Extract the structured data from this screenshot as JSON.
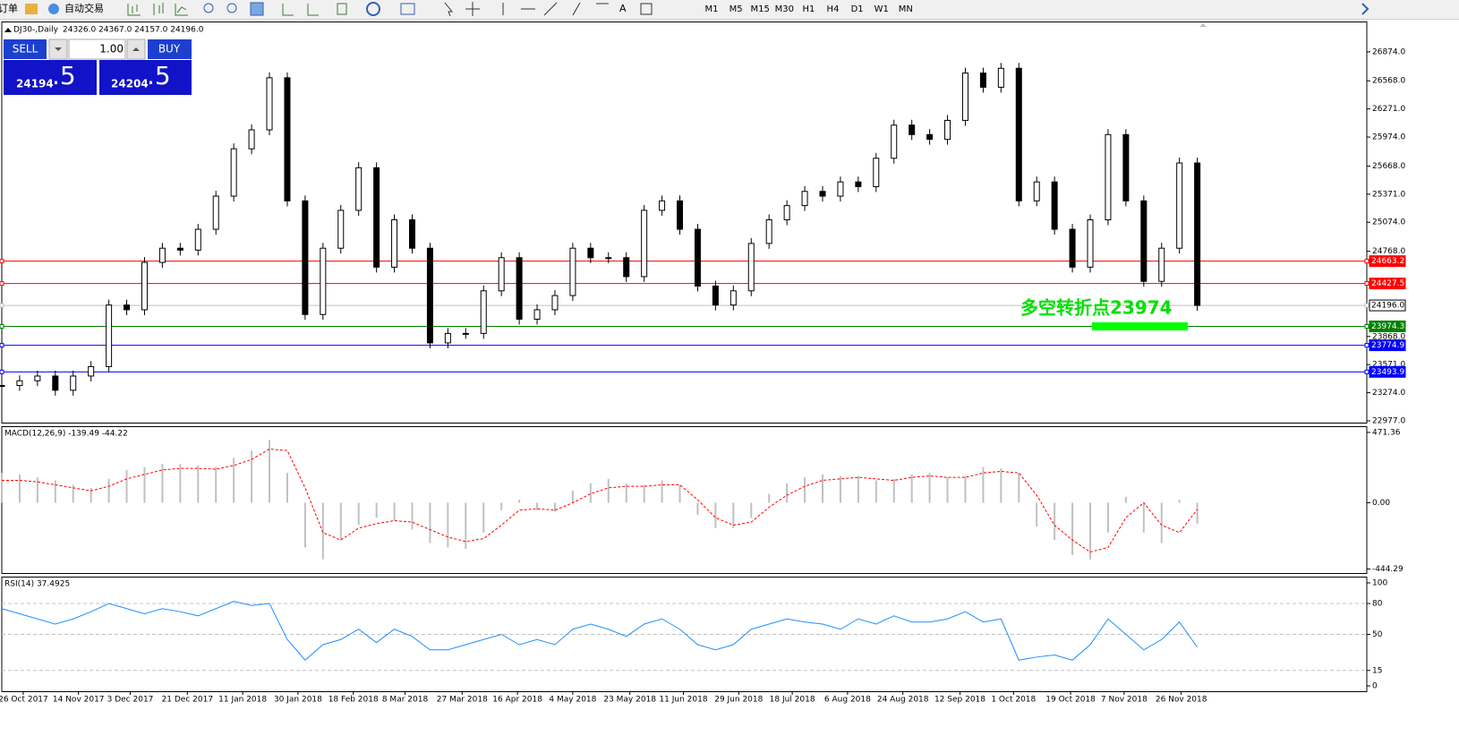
{
  "toolbar": {
    "items": [
      "订单",
      "自动交易"
    ],
    "periods": [
      "M1",
      "M5",
      "M15",
      "M30",
      "H1",
      "H4",
      "D1",
      "W1",
      "MN"
    ]
  },
  "trade_panel": {
    "sell": "SELL",
    "buy": "BUY",
    "lots": "1.00",
    "bid_main": "24194",
    "bid_frac": ".5",
    "ask_main": "24204",
    "ask_frac": ".5"
  },
  "chart_data": [
    {
      "type": "candlestick",
      "title": "DJ30-,Daily",
      "subtitle": "24326.0 24367.0 24157.0 24196.0",
      "annotation": "多空转折点23974",
      "values": [
        23350,
        23400,
        23450,
        23300,
        23450,
        23550,
        24200,
        24150,
        24650,
        24800,
        24780,
        25000,
        25350,
        25850,
        26050,
        26600,
        25300,
        24100,
        24800,
        25200,
        25650,
        24600,
        25100,
        24800,
        23800,
        23900,
        23900,
        24350,
        24700,
        24050,
        24150,
        24300,
        24800,
        24700,
        24700,
        24500,
        25200,
        25300,
        25000,
        24400,
        24200,
        24350,
        24850,
        25100,
        25250,
        25400,
        25350,
        25500,
        25450,
        25750,
        26100,
        26000,
        25950,
        26150,
        26650,
        26500,
        26700,
        25300,
        25500,
        25000,
        24600,
        25100,
        26000,
        25300,
        24450,
        24800,
        25700,
        24196
      ],
      "xlim": [
        0,
        76.5
      ],
      "ylim": [
        22958,
        27185
      ],
      "yticks": [
        {
          "value": 26874,
          "label": "26874.0"
        },
        {
          "value": 26568,
          "label": "26568.0"
        },
        {
          "value": 26271,
          "label": "26271.0"
        },
        {
          "value": 25974,
          "label": "25974.0"
        },
        {
          "value": 25668,
          "label": "25668.0"
        },
        {
          "value": 25371,
          "label": "25371.0"
        },
        {
          "value": 25074,
          "label": "25074.0"
        },
        {
          "value": 24768,
          "label": "24768.0"
        },
        {
          "value": 23868,
          "label": "23868.0"
        },
        {
          "value": 23571,
          "label": "23571.0"
        },
        {
          "value": 23274,
          "label": "23274.0"
        },
        {
          "value": 22977,
          "label": "22977.0"
        }
      ],
      "levels": [
        {
          "value": 24663.2,
          "label": "24663.2",
          "color": "#ff0000"
        },
        {
          "value": 24427.5,
          "label": "24427.5",
          "color": "#ff0000"
        },
        {
          "value": 24196,
          "label": "24196.0",
          "color": "#c0c0c0"
        },
        {
          "value": 23974.3,
          "label": "23974.3",
          "color": "#008000"
        },
        {
          "value": 23774.9,
          "label": "23774.9",
          "color": "#0000ff"
        },
        {
          "value": 23493.9,
          "label": "23493.9",
          "color": "#0000ff"
        }
      ]
    },
    {
      "type": "macd",
      "title": "MACD(12,26,9) -139.49 -44.22",
      "xlim": [
        0,
        76.5
      ],
      "ylim": [
        -471,
        507
      ],
      "yticks": [
        {
          "value": 471.36,
          "label": "471.36"
        },
        {
          "value": 0,
          "label": "0.00"
        },
        {
          "value": -444.29,
          "label": "-444.29"
        }
      ],
      "series": [
        {
          "name": "MACD",
          "color": "#c0c0c0",
          "values": [
            200,
            190,
            170,
            150,
            120,
            100,
            160,
            220,
            240,
            260,
            260,
            250,
            240,
            300,
            350,
            420,
            200,
            -300,
            -380,
            -250,
            -150,
            -100,
            -120,
            -180,
            -270,
            -300,
            -310,
            -200,
            -50,
            20,
            -50,
            -60,
            80,
            130,
            160,
            130,
            120,
            150,
            120,
            -80,
            -170,
            -170,
            -100,
            60,
            130,
            170,
            190,
            180,
            180,
            150,
            160,
            190,
            200,
            170,
            180,
            240,
            230,
            200,
            -160,
            -250,
            -350,
            -380,
            -200,
            40,
            -200,
            -270,
            20,
            -139.49
          ]
        },
        {
          "name": "Signal",
          "color": "#ff0000",
          "values": [
            150,
            150,
            140,
            120,
            100,
            80,
            110,
            160,
            190,
            220,
            230,
            230,
            225,
            250,
            290,
            360,
            350,
            100,
            -200,
            -250,
            -170,
            -140,
            -120,
            -130,
            -180,
            -230,
            -260,
            -240,
            -150,
            -50,
            -40,
            -50,
            0,
            60,
            100,
            110,
            110,
            120,
            120,
            20,
            -100,
            -150,
            -130,
            -30,
            50,
            110,
            150,
            160,
            170,
            160,
            150,
            170,
            180,
            170,
            170,
            200,
            210,
            200,
            50,
            -150,
            -250,
            -330,
            -300,
            -100,
            0,
            -150,
            -200,
            -44.22
          ]
        }
      ]
    },
    {
      "type": "rsi",
      "title": "RSI(14) 37.4925",
      "xlim": [
        0,
        76.5
      ],
      "ylim": [
        -5.2,
        105.2
      ],
      "yticks": [
        100,
        80,
        50,
        15,
        0
      ],
      "color": "#1e90ff",
      "values": [
        75,
        70,
        65,
        60,
        65,
        72,
        80,
        75,
        70,
        75,
        72,
        68,
        75,
        82,
        78,
        80,
        45,
        25,
        40,
        45,
        55,
        42,
        55,
        48,
        35,
        35,
        40,
        45,
        50,
        40,
        45,
        40,
        55,
        60,
        55,
        48,
        60,
        65,
        55,
        40,
        35,
        40,
        55,
        60,
        65,
        62,
        60,
        55,
        65,
        60,
        68,
        62,
        62,
        65,
        72,
        62,
        65,
        25,
        28,
        30,
        25,
        40,
        65,
        50,
        35,
        45,
        62,
        37.4925
      ],
      "xticks": [
        {
          "value": 1.2,
          "label": "26 Oct 2017"
        },
        {
          "value": 4.3,
          "label": "14 Nov 2017"
        },
        {
          "value": 7.2,
          "label": "3 Dec 2017"
        },
        {
          "value": 10.4,
          "label": "21 Dec 2017"
        },
        {
          "value": 13.5,
          "label": "11 Jan 2018"
        },
        {
          "value": 16.6,
          "label": "30 Jan 2018"
        },
        {
          "value": 19.7,
          "label": "18 Feb 2018"
        },
        {
          "value": 22.6,
          "label": "8 Mar 2018"
        },
        {
          "value": 25.8,
          "label": "27 Mar 2018"
        },
        {
          "value": 28.9,
          "label": "16 Apr 2018"
        },
        {
          "value": 32,
          "label": "4 May 2018"
        },
        {
          "value": 35.2,
          "label": "23 May 2018"
        },
        {
          "value": 38.2,
          "label": "11 Jun 2018"
        },
        {
          "value": 41.3,
          "label": "29 Jun 2018"
        },
        {
          "value": 44.3,
          "label": "18 Jul 2018"
        },
        {
          "value": 47.4,
          "label": "6 Aug 2018"
        },
        {
          "value": 50.5,
          "label": "24 Aug 2018"
        },
        {
          "value": 53.7,
          "label": "12 Sep 2018"
        },
        {
          "value": 56.7,
          "label": "1 Oct 2018"
        },
        {
          "value": 59.9,
          "label": "19 Oct 2018"
        },
        {
          "value": 62.9,
          "label": "7 Nov 2018"
        },
        {
          "value": 66.1,
          "label": "26 Nov 2018"
        }
      ]
    }
  ]
}
